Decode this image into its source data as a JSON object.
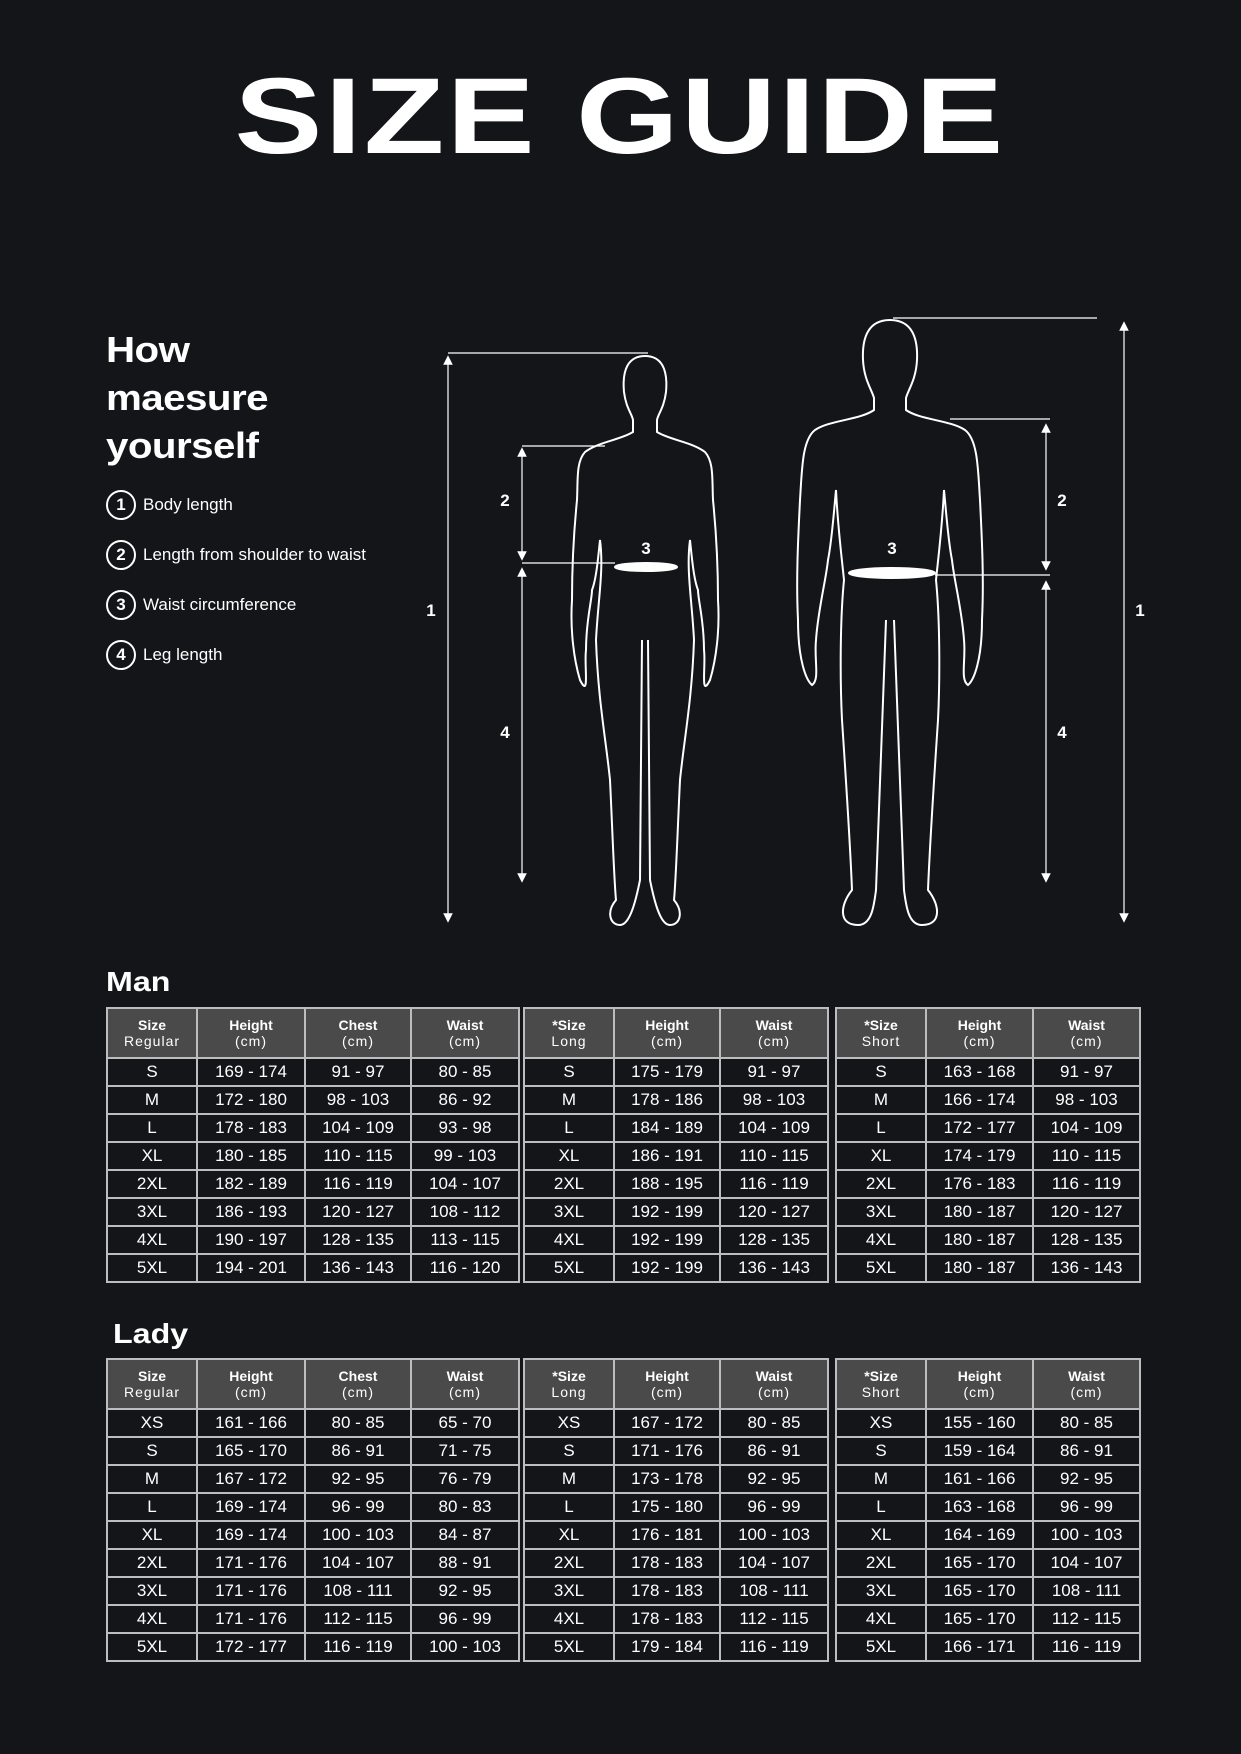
{
  "title": "SIZE GUIDE",
  "howto": {
    "heading": [
      "How",
      "maesure",
      "yourself"
    ],
    "steps": [
      {
        "num": "1",
        "label": "Body length"
      },
      {
        "num": "2",
        "label": "Length from shoulder to waist"
      },
      {
        "num": "3",
        "label": "Waist circumference"
      },
      {
        "num": "4",
        "label": "Leg length"
      }
    ]
  },
  "diagram_labels": {
    "body_length": "1",
    "shoulder_waist": "2",
    "waist": "3",
    "leg": "4"
  },
  "man": {
    "label": "Man",
    "tables": [
      {
        "headers": [
          [
            "Size",
            "Regular"
          ],
          [
            "Height",
            "(cm)"
          ],
          [
            "Chest",
            "(cm)"
          ],
          [
            "Waist",
            "(cm)"
          ]
        ],
        "rows": [
          [
            "S",
            "169 - 174",
            "91 - 97",
            "80 - 85"
          ],
          [
            "M",
            "172 - 180",
            "98 - 103",
            "86 - 92"
          ],
          [
            "L",
            "178 - 183",
            "104 - 109",
            "93 - 98"
          ],
          [
            "XL",
            "180 - 185",
            "110 - 115",
            "99 - 103"
          ],
          [
            "2XL",
            "182 - 189",
            "116 - 119",
            "104 - 107"
          ],
          [
            "3XL",
            "186 - 193",
            "120 - 127",
            "108 - 112"
          ],
          [
            "4XL",
            "190 - 197",
            "128 - 135",
            "113 - 115"
          ],
          [
            "5XL",
            "194 - 201",
            "136 - 143",
            "116 - 120"
          ]
        ]
      },
      {
        "headers": [
          [
            "*Size",
            "Long"
          ],
          [
            "Height",
            "(cm)"
          ],
          [
            "Waist",
            "(cm)"
          ]
        ],
        "rows": [
          [
            "S",
            "175 - 179",
            "91 - 97"
          ],
          [
            "M",
            "178 - 186",
            "98 - 103"
          ],
          [
            "L",
            "184 - 189",
            "104 - 109"
          ],
          [
            "XL",
            "186 - 191",
            "110 - 115"
          ],
          [
            "2XL",
            "188 - 195",
            "116 - 119"
          ],
          [
            "3XL",
            "192 - 199",
            "120 - 127"
          ],
          [
            "4XL",
            "192 - 199",
            "128 - 135"
          ],
          [
            "5XL",
            "192 - 199",
            "136 - 143"
          ]
        ]
      },
      {
        "headers": [
          [
            "*Size",
            "Short"
          ],
          [
            "Height",
            "(cm)"
          ],
          [
            "Waist",
            "(cm)"
          ]
        ],
        "rows": [
          [
            "S",
            "163 - 168",
            "91 - 97"
          ],
          [
            "M",
            "166 - 174",
            "98 - 103"
          ],
          [
            "L",
            "172 - 177",
            "104 - 109"
          ],
          [
            "XL",
            "174 - 179",
            "110 - 115"
          ],
          [
            "2XL",
            "176 - 183",
            "116 - 119"
          ],
          [
            "3XL",
            "180 - 187",
            "120 - 127"
          ],
          [
            "4XL",
            "180 - 187",
            "128 - 135"
          ],
          [
            "5XL",
            "180 - 187",
            "136 - 143"
          ]
        ]
      }
    ]
  },
  "lady": {
    "label": "Lady",
    "tables": [
      {
        "headers": [
          [
            "Size",
            "Regular"
          ],
          [
            "Height",
            "(cm)"
          ],
          [
            "Chest",
            "(cm)"
          ],
          [
            "Waist",
            "(cm)"
          ]
        ],
        "rows": [
          [
            "XS",
            "161 - 166",
            "80 - 85",
            "65 - 70"
          ],
          [
            "S",
            "165 - 170",
            "86 - 91",
            "71 - 75"
          ],
          [
            "M",
            "167 - 172",
            "92 - 95",
            "76 - 79"
          ],
          [
            "L",
            "169 - 174",
            "96 - 99",
            "80 - 83"
          ],
          [
            "XL",
            "169 - 174",
            "100 - 103",
            "84 - 87"
          ],
          [
            "2XL",
            "171 - 176",
            "104 - 107",
            "88 - 91"
          ],
          [
            "3XL",
            "171 - 176",
            "108 - 111",
            "92 - 95"
          ],
          [
            "4XL",
            "171 - 176",
            "112 - 115",
            "96 - 99"
          ],
          [
            "5XL",
            "172 - 177",
            "116 - 119",
            "100 - 103"
          ]
        ]
      },
      {
        "headers": [
          [
            "*Size",
            "Long"
          ],
          [
            "Height",
            "(cm)"
          ],
          [
            "Waist",
            "(cm)"
          ]
        ],
        "rows": [
          [
            "XS",
            "167 - 172",
            "80 - 85"
          ],
          [
            "S",
            "171 - 176",
            "86 - 91"
          ],
          [
            "M",
            "173 - 178",
            "92 - 95"
          ],
          [
            "L",
            "175 - 180",
            "96 - 99"
          ],
          [
            "XL",
            "176 - 181",
            "100 - 103"
          ],
          [
            "2XL",
            "178 - 183",
            "104 - 107"
          ],
          [
            "3XL",
            "178 - 183",
            "108 - 111"
          ],
          [
            "4XL",
            "178 - 183",
            "112 - 115"
          ],
          [
            "5XL",
            "179 - 184",
            "116 - 119"
          ]
        ]
      },
      {
        "headers": [
          [
            "*Size",
            "Short"
          ],
          [
            "Height",
            "(cm)"
          ],
          [
            "Waist",
            "(cm)"
          ]
        ],
        "rows": [
          [
            "XS",
            "155 - 160",
            "80 - 85"
          ],
          [
            "S",
            "159 - 164",
            "86 - 91"
          ],
          [
            "M",
            "161 - 166",
            "92 - 95"
          ],
          [
            "L",
            "163 - 168",
            "96 - 99"
          ],
          [
            "XL",
            "164 - 169",
            "100 - 103"
          ],
          [
            "2XL",
            "165 - 170",
            "104 - 107"
          ],
          [
            "3XL",
            "165 - 170",
            "108 - 111"
          ],
          [
            "4XL",
            "165 - 170",
            "112 - 115"
          ],
          [
            "5XL",
            "166 - 171",
            "116 - 119"
          ]
        ]
      }
    ]
  }
}
